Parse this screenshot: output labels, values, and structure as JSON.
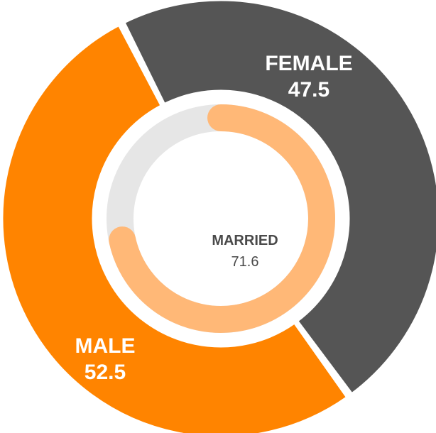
{
  "chart_data": {
    "type": "pie",
    "outer_ring": {
      "slices": [
        {
          "label": "FEMALE",
          "value": 47.5,
          "color": "#555555"
        },
        {
          "label": "MALE",
          "value": 52.5,
          "color": "#FF8400"
        }
      ]
    },
    "inner_ring": {
      "label": "MARRIED",
      "value": 71.6,
      "max": 100,
      "color": "#FFB877",
      "track_color": "#E6E6E6"
    }
  }
}
